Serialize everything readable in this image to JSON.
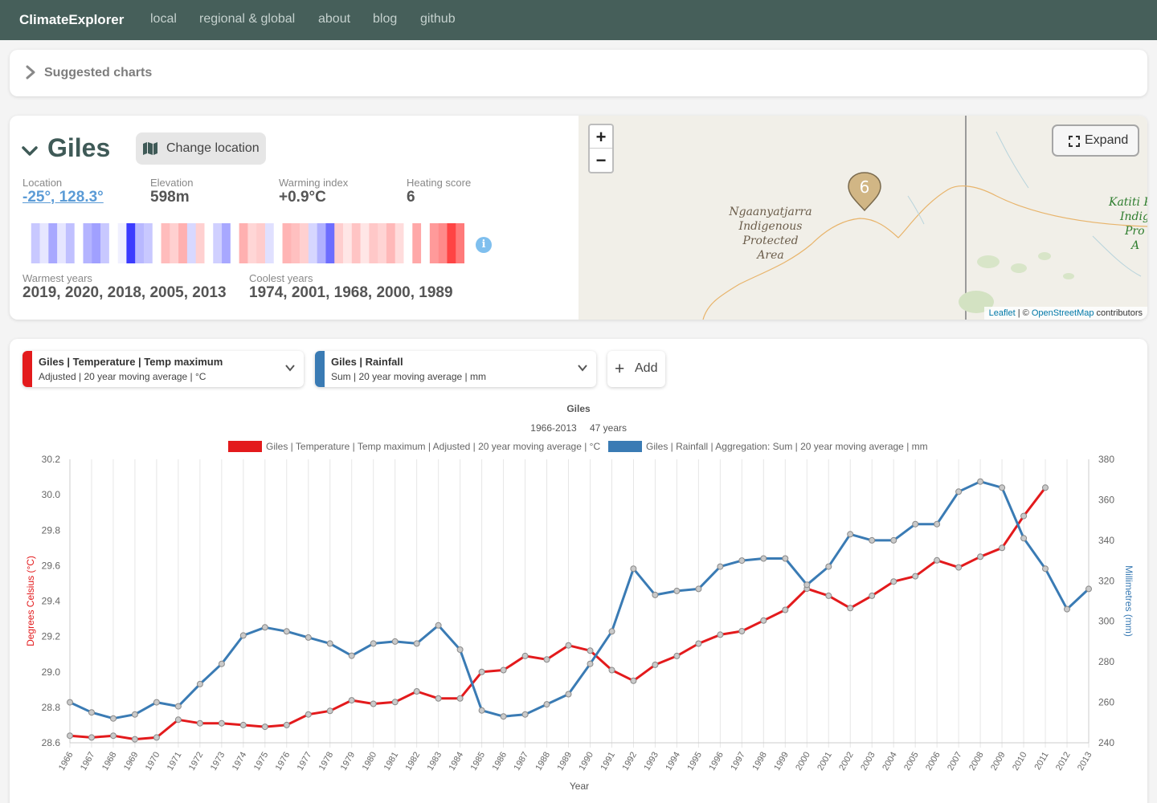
{
  "nav": {
    "brand": "ClimateExplorer",
    "links": [
      "local",
      "regional & global",
      "about",
      "blog",
      "github"
    ]
  },
  "suggested": {
    "title": "Suggested charts"
  },
  "location": {
    "name": "Giles",
    "change_label": "Change location",
    "stats": {
      "location_label": "Location",
      "location_value": "-25°, 128.3°",
      "elevation_label": "Elevation",
      "elevation_value": "598m",
      "warming_label": "Warming index",
      "warming_value": "+0.9°C",
      "heating_label": "Heating score",
      "heating_value": "6"
    },
    "warmest_label": "Warmest years",
    "warmest_value": "2019, 2020, 2018, 2005, 2013",
    "coolest_label": "Coolest years",
    "coolest_value": "1974, 2001, 1968, 2000, 1989",
    "info_icon": "i",
    "stripes": [
      "#ffffff",
      "#c8c8ff",
      "#e6e6ff",
      "#a8a8ff",
      "#e6e6ff",
      "#c0c0ff",
      "#ffffff",
      "#b4b4ff",
      "#a0a0ff",
      "#c8c8ff",
      "#ffffff",
      "#f0f0ff",
      "#3b3bff",
      "#b8b8ff",
      "#c8c8ff",
      "#ffffff",
      "#ffbcbc",
      "#ffd0d0",
      "#ffb0b0",
      "#d8d8ff",
      "#ffd0d0",
      "#ffffff",
      "#d0d0ff",
      "#a8a8ff",
      "#ffffff",
      "#ffb0b0",
      "#ffd6d6",
      "#ffcccc",
      "#e0e0ff",
      "#ffffff",
      "#ffb4b4",
      "#ffc0c0",
      "#ffd0d0",
      "#d6d6ff",
      "#b0b0ff",
      "#6d6dff",
      "#ffcece",
      "#ffe6e6",
      "#ffc4c4",
      "#ffe6e6",
      "#ffc8c8",
      "#ffd4d4",
      "#ffb8b8",
      "#ffdcdc",
      "#ffffff",
      "#ffa8a8",
      "#ffffff",
      "#ff9a9a",
      "#ff8a8a",
      "#ff4444",
      "#ff7a7a"
    ]
  },
  "map": {
    "zoom_in": "+",
    "zoom_out": "−",
    "expand_label": "Expand",
    "marker_label": "6",
    "area_label_lines": [
      "Ngaanyatjarra",
      "Indigenous",
      "Protected",
      "Area"
    ],
    "katiti_lines": [
      "Katiti P",
      "Indig",
      "Pro",
      "A"
    ],
    "attribution_leaflet": "Leaflet",
    "attribution_sep": " | © ",
    "attribution_osm": "OpenStreetMap",
    "attribution_rest": " contributors"
  },
  "selectors": [
    {
      "title": "Giles | Temperature | Temp maximum",
      "subtitle": "Adjusted | 20 year moving average | °C",
      "color": "#e31a1c"
    },
    {
      "title": "Giles | Rainfall",
      "subtitle": "Sum | 20 year moving average | mm",
      "color": "#3a7bb4"
    }
  ],
  "add_label": "Add",
  "chart_data": {
    "type": "line",
    "title": "Giles",
    "subtitle_range": "1966-2013",
    "subtitle_years": "47 years",
    "xlabel": "Year",
    "categories": [
      "1966",
      "1967",
      "1968",
      "1969",
      "1970",
      "1971",
      "1972",
      "1973",
      "1974",
      "1975",
      "1976",
      "1977",
      "1978",
      "1979",
      "1980",
      "1981",
      "1982",
      "1983",
      "1984",
      "1985",
      "1986",
      "1987",
      "1988",
      "1989",
      "1990",
      "1991",
      "1992",
      "1993",
      "1994",
      "1995",
      "1996",
      "1997",
      "1998",
      "1999",
      "2000",
      "2001",
      "2002",
      "2003",
      "2004",
      "2005",
      "2006",
      "2007",
      "2008",
      "2009",
      "2010",
      "2011",
      "2012",
      "2013"
    ],
    "series": [
      {
        "name": "Giles | Temperature | Temp maximum | Adjusted | 20 year moving average | °C",
        "axis": "left",
        "color": "#e31a1c",
        "values": [
          28.64,
          28.63,
          28.64,
          28.62,
          28.63,
          28.73,
          28.71,
          28.71,
          28.7,
          28.69,
          28.7,
          28.76,
          28.78,
          28.84,
          28.82,
          28.83,
          28.89,
          28.85,
          28.85,
          29.0,
          29.01,
          29.09,
          29.07,
          29.15,
          29.12,
          29.01,
          28.95,
          29.04,
          29.09,
          29.16,
          29.21,
          29.23,
          29.29,
          29.35,
          29.47,
          29.43,
          29.36,
          29.43,
          29.51,
          29.54,
          29.63,
          29.59,
          29.65,
          29.7,
          29.88,
          30.04,
          null,
          null
        ]
      },
      {
        "name": "Giles | Rainfall | Aggregation: Sum | 20 year moving average | mm",
        "axis": "right",
        "color": "#3a7bb4",
        "values": [
          260,
          255,
          252,
          254,
          260,
          258,
          269,
          279,
          293,
          297,
          295,
          292,
          289,
          283,
          289,
          290,
          289,
          298,
          286,
          256,
          253,
          254,
          259,
          264,
          279,
          295,
          326,
          313,
          315,
          316,
          327,
          330,
          331,
          331,
          318,
          327,
          343,
          340,
          340,
          348,
          348,
          364,
          369,
          366,
          341,
          326,
          306,
          316
        ]
      }
    ],
    "yleft": {
      "label": "Degrees Celsius (°C)",
      "min": 28.6,
      "max": 30.2,
      "ticks": [
        "28.6",
        "28.8",
        "29.0",
        "29.2",
        "29.4",
        "29.6",
        "29.8",
        "30.0",
        "30.2"
      ],
      "color": "#e31a1c"
    },
    "yright": {
      "label": "Millimetres (mm)",
      "min": 240,
      "max": 380,
      "ticks": [
        "240",
        "260",
        "280",
        "300",
        "320",
        "340",
        "360",
        "380"
      ],
      "color": "#3a7bb4"
    },
    "legend": "top",
    "grid": true
  }
}
